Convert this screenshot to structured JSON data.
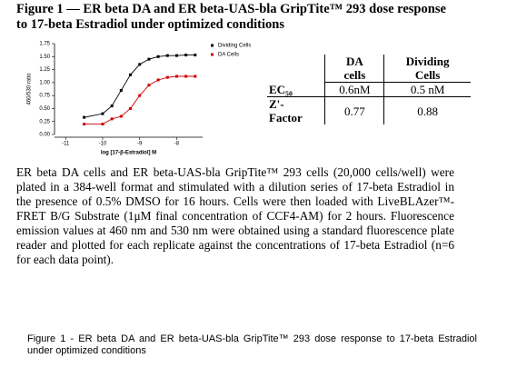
{
  "figure_title": "Figure 1 — ER beta DA and ER beta-UAS-bla GripTite™ 293 dose response to 17-beta Estradiol under optimized conditions",
  "chart_data": {
    "type": "line",
    "xlabel": "log [17-β-Estradiol] M",
    "ylabel": "460/530 ratio",
    "x": [
      -10.5,
      -10,
      -9.75,
      -9.5,
      -9.25,
      -9,
      -8.75,
      -8.5,
      -8.25,
      -8,
      -7.75,
      -7.5
    ],
    "series": [
      {
        "name": "Dividing Cells",
        "color": "#000000",
        "values": [
          0.33,
          0.4,
          0.55,
          0.85,
          1.15,
          1.35,
          1.45,
          1.5,
          1.52,
          1.52,
          1.53,
          1.53
        ]
      },
      {
        "name": "DA Cells",
        "color": "#cc0000",
        "values": [
          0.2,
          0.2,
          0.3,
          0.35,
          0.5,
          0.75,
          0.95,
          1.05,
          1.1,
          1.12,
          1.12,
          1.12
        ]
      }
    ],
    "xlim": [
      -11.3,
      -7.3
    ],
    "xticks": [
      -11,
      -10,
      -9,
      -8
    ],
    "ylim": [
      0,
      1.75
    ],
    "yticks": [
      {
        "value": 0,
        "label": "0.00"
      },
      0.25,
      {
        "value": 0.5,
        "label": "0.50"
      },
      0.75,
      {
        "value": 1,
        "label": "1.00"
      },
      1.25,
      {
        "value": 1.5,
        "label": "1.50"
      },
      1.75
    ]
  },
  "table": {
    "header": [
      "DA cells",
      "Dividing Cells"
    ],
    "rows": [
      [
        "EC₅₀",
        "0.6nM",
        "0.5 nM"
      ],
      [
        "Z'-Factor",
        "0.77",
        "0.88"
      ]
    ]
  },
  "body": "ER beta DA cells and ER beta-UAS-bla GripTite™ 293 cells (20,000 cells/well) were plated in a 384-well format and stimulated with a dilution series of 17-beta Estradiol in the presence of 0.5% DMSO for 16 hours. Cells were then loaded with LiveBLAzer™-FRET B/G Substrate (1μM final concentration of CCF4-AM) for 2 hours. Fluorescence emission values at 460 nm and 530 nm were obtained using a standard fluorescence plate reader and plotted for each replicate against the concentrations of 17-beta Estradiol (n=6 for each data point).",
  "caption": "Figure 1 - ER beta DA and ER beta-UAS-bla GripTite™ 293 dose response to 17-beta Estradiol under optimized conditions"
}
